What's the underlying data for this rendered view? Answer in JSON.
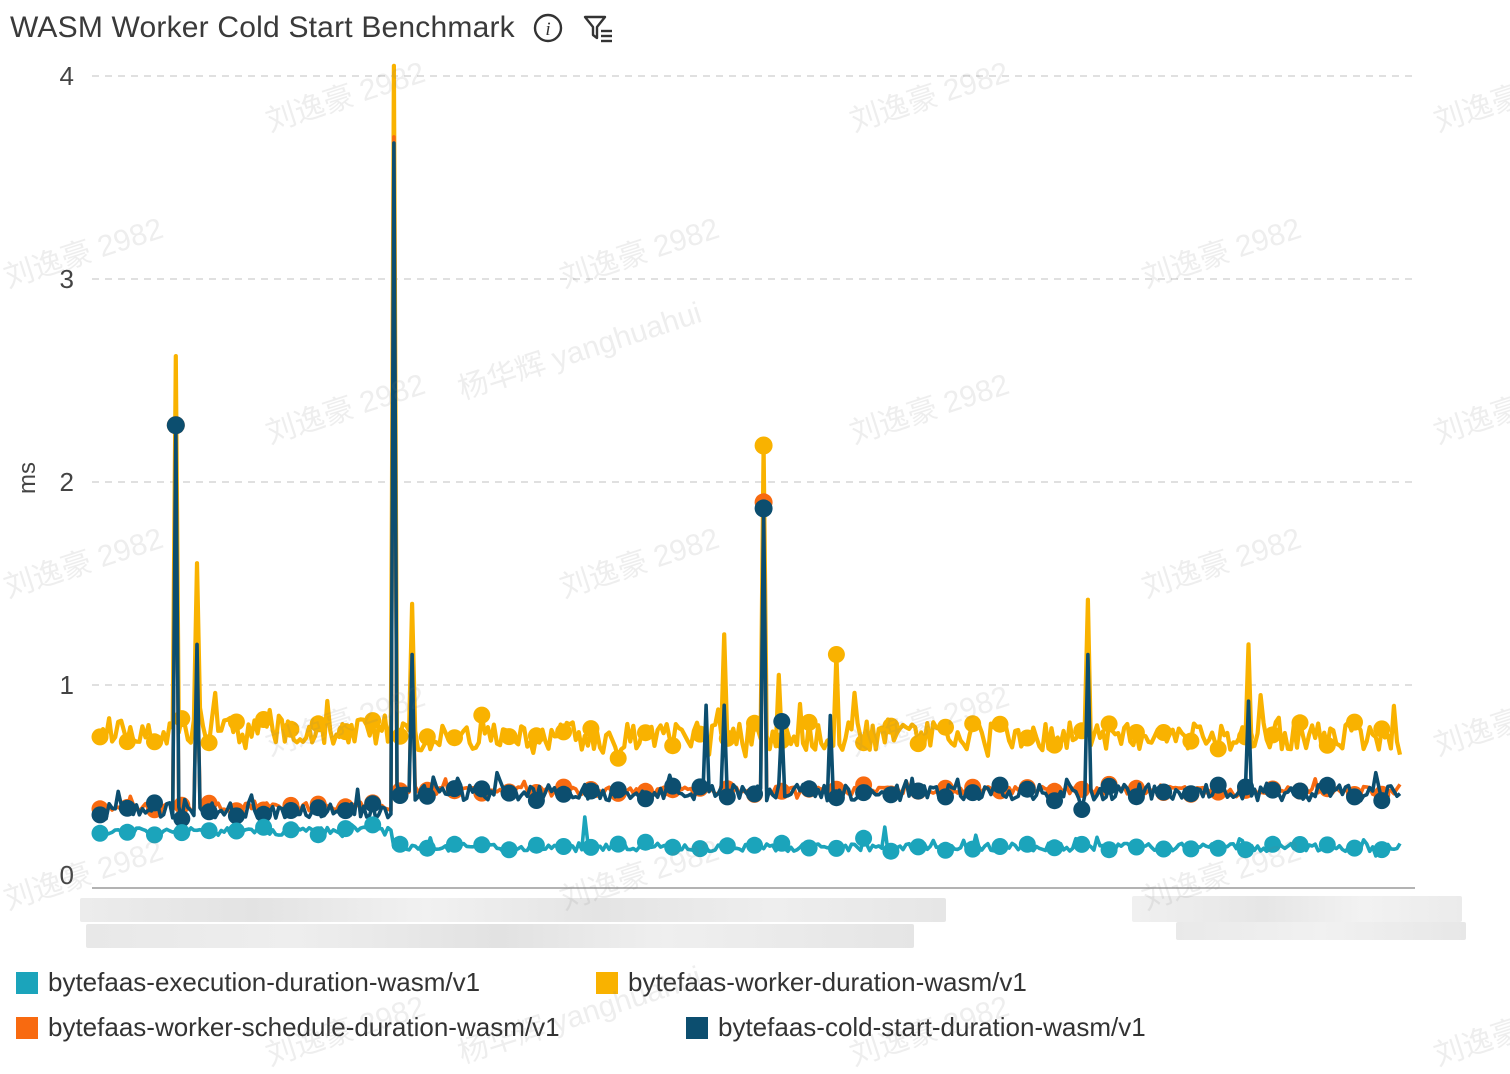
{
  "header": {
    "title": "WASM Worker Cold Start Benchmark",
    "info_icon": "info-icon",
    "filter_icon": "filter-list-icon"
  },
  "watermarks": {
    "primary": "刘逸豪 2982",
    "secondary": "杨华辉 yanghuahui"
  },
  "chart_data": {
    "type": "line",
    "title": "WASM Worker Cold Start Benchmark",
    "xlabel": "",
    "ylabel": "ms",
    "ylim": [
      0,
      4
    ],
    "yticks": [
      0,
      1,
      2,
      3,
      4
    ],
    "grid": true,
    "legend_position": "bottom",
    "n_points": 430,
    "series": [
      {
        "name": "bytefaas-execution-duration-wasm/v1",
        "color": "#1ba4bb",
        "baseline_before": 0.28,
        "baseline_after": 0.2,
        "noise": 0.02,
        "spikes": [
          [
            160,
            0.35
          ],
          [
            260,
            0.3
          ],
          [
            290,
            0.26
          ],
          [
            330,
            0.25
          ]
        ]
      },
      {
        "name": "bytefaas-worker-duration-wasm/v1",
        "color": "#f9b200",
        "baseline_before": 0.78,
        "baseline_after": 0.75,
        "noise": 0.07,
        "spikes": [
          [
            25,
            2.62
          ],
          [
            32,
            1.6
          ],
          [
            97,
            4.05
          ],
          [
            103,
            1.4
          ],
          [
            206,
            1.25
          ],
          [
            220,
            2.18
          ],
          [
            225,
            1.05
          ],
          [
            244,
            1.15
          ],
          [
            327,
            1.42
          ],
          [
            380,
            1.2
          ],
          [
            384,
            0.95
          ]
        ]
      },
      {
        "name": "bytefaas-worker-schedule-duration-wasm/v1",
        "color": "#f86a10",
        "baseline_before": 0.4,
        "baseline_after": 0.48,
        "noise": 0.02,
        "spikes": [
          [
            25,
            2.28
          ],
          [
            32,
            1.2
          ],
          [
            97,
            3.7
          ],
          [
            103,
            1.15
          ],
          [
            220,
            1.9
          ]
        ]
      },
      {
        "name": "bytefaas-cold-start-duration-wasm/v1",
        "color": "#0c4e6f",
        "baseline_before": 0.38,
        "baseline_after": 0.47,
        "noise": 0.04,
        "spikes": [
          [
            25,
            2.28
          ],
          [
            32,
            1.2
          ],
          [
            97,
            3.67
          ],
          [
            103,
            1.15
          ],
          [
            200,
            0.9
          ],
          [
            206,
            0.9
          ],
          [
            220,
            1.87
          ],
          [
            226,
            0.82
          ],
          [
            242,
            0.85
          ],
          [
            327,
            1.15
          ],
          [
            380,
            0.92
          ]
        ]
      }
    ],
    "step_index": 97
  }
}
